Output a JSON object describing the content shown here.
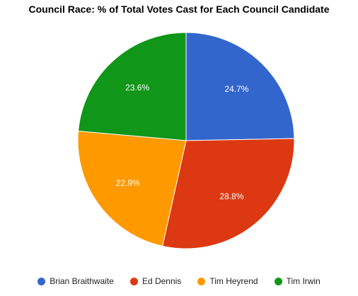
{
  "chart_data": {
    "type": "pie",
    "title": "Council Race: % of Total Votes Cast for Each Council Candidate",
    "categories": [
      "Brian Braithwaite",
      "Ed Dennis",
      "Tim Heyrend",
      "Tim Irwin"
    ],
    "values": [
      24.7,
      28.8,
      22.9,
      23.6
    ],
    "labels": [
      "24.7%",
      "28.8%",
      "22.9%",
      "23.6%"
    ],
    "colors": [
      "#3366cc",
      "#dc3912",
      "#ff9900",
      "#109618"
    ],
    "legend_position": "bottom"
  }
}
